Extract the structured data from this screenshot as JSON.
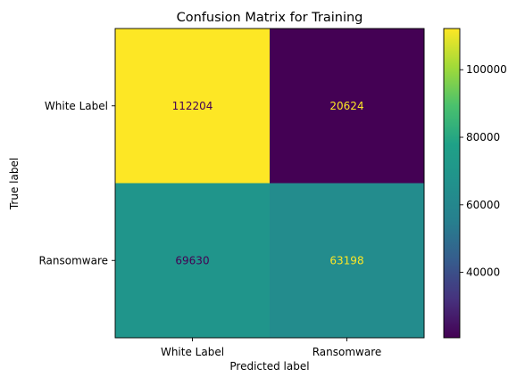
{
  "chart_data": {
    "type": "heatmap",
    "title": "Confusion Matrix for Training",
    "xlabel": "Predicted label",
    "ylabel": "True label",
    "x_categories": [
      "White Label",
      "Ransomware"
    ],
    "y_categories": [
      "White Label",
      "Ransomware"
    ],
    "values": [
      [
        112204,
        20624
      ],
      [
        69630,
        63198
      ]
    ],
    "colormap": "viridis",
    "colorbar": {
      "vmin": 20624,
      "vmax": 112204,
      "ticks": [
        40000,
        60000,
        80000,
        100000
      ],
      "tick_labels": [
        "40000",
        "60000",
        "80000",
        "100000"
      ]
    },
    "grid": false
  }
}
